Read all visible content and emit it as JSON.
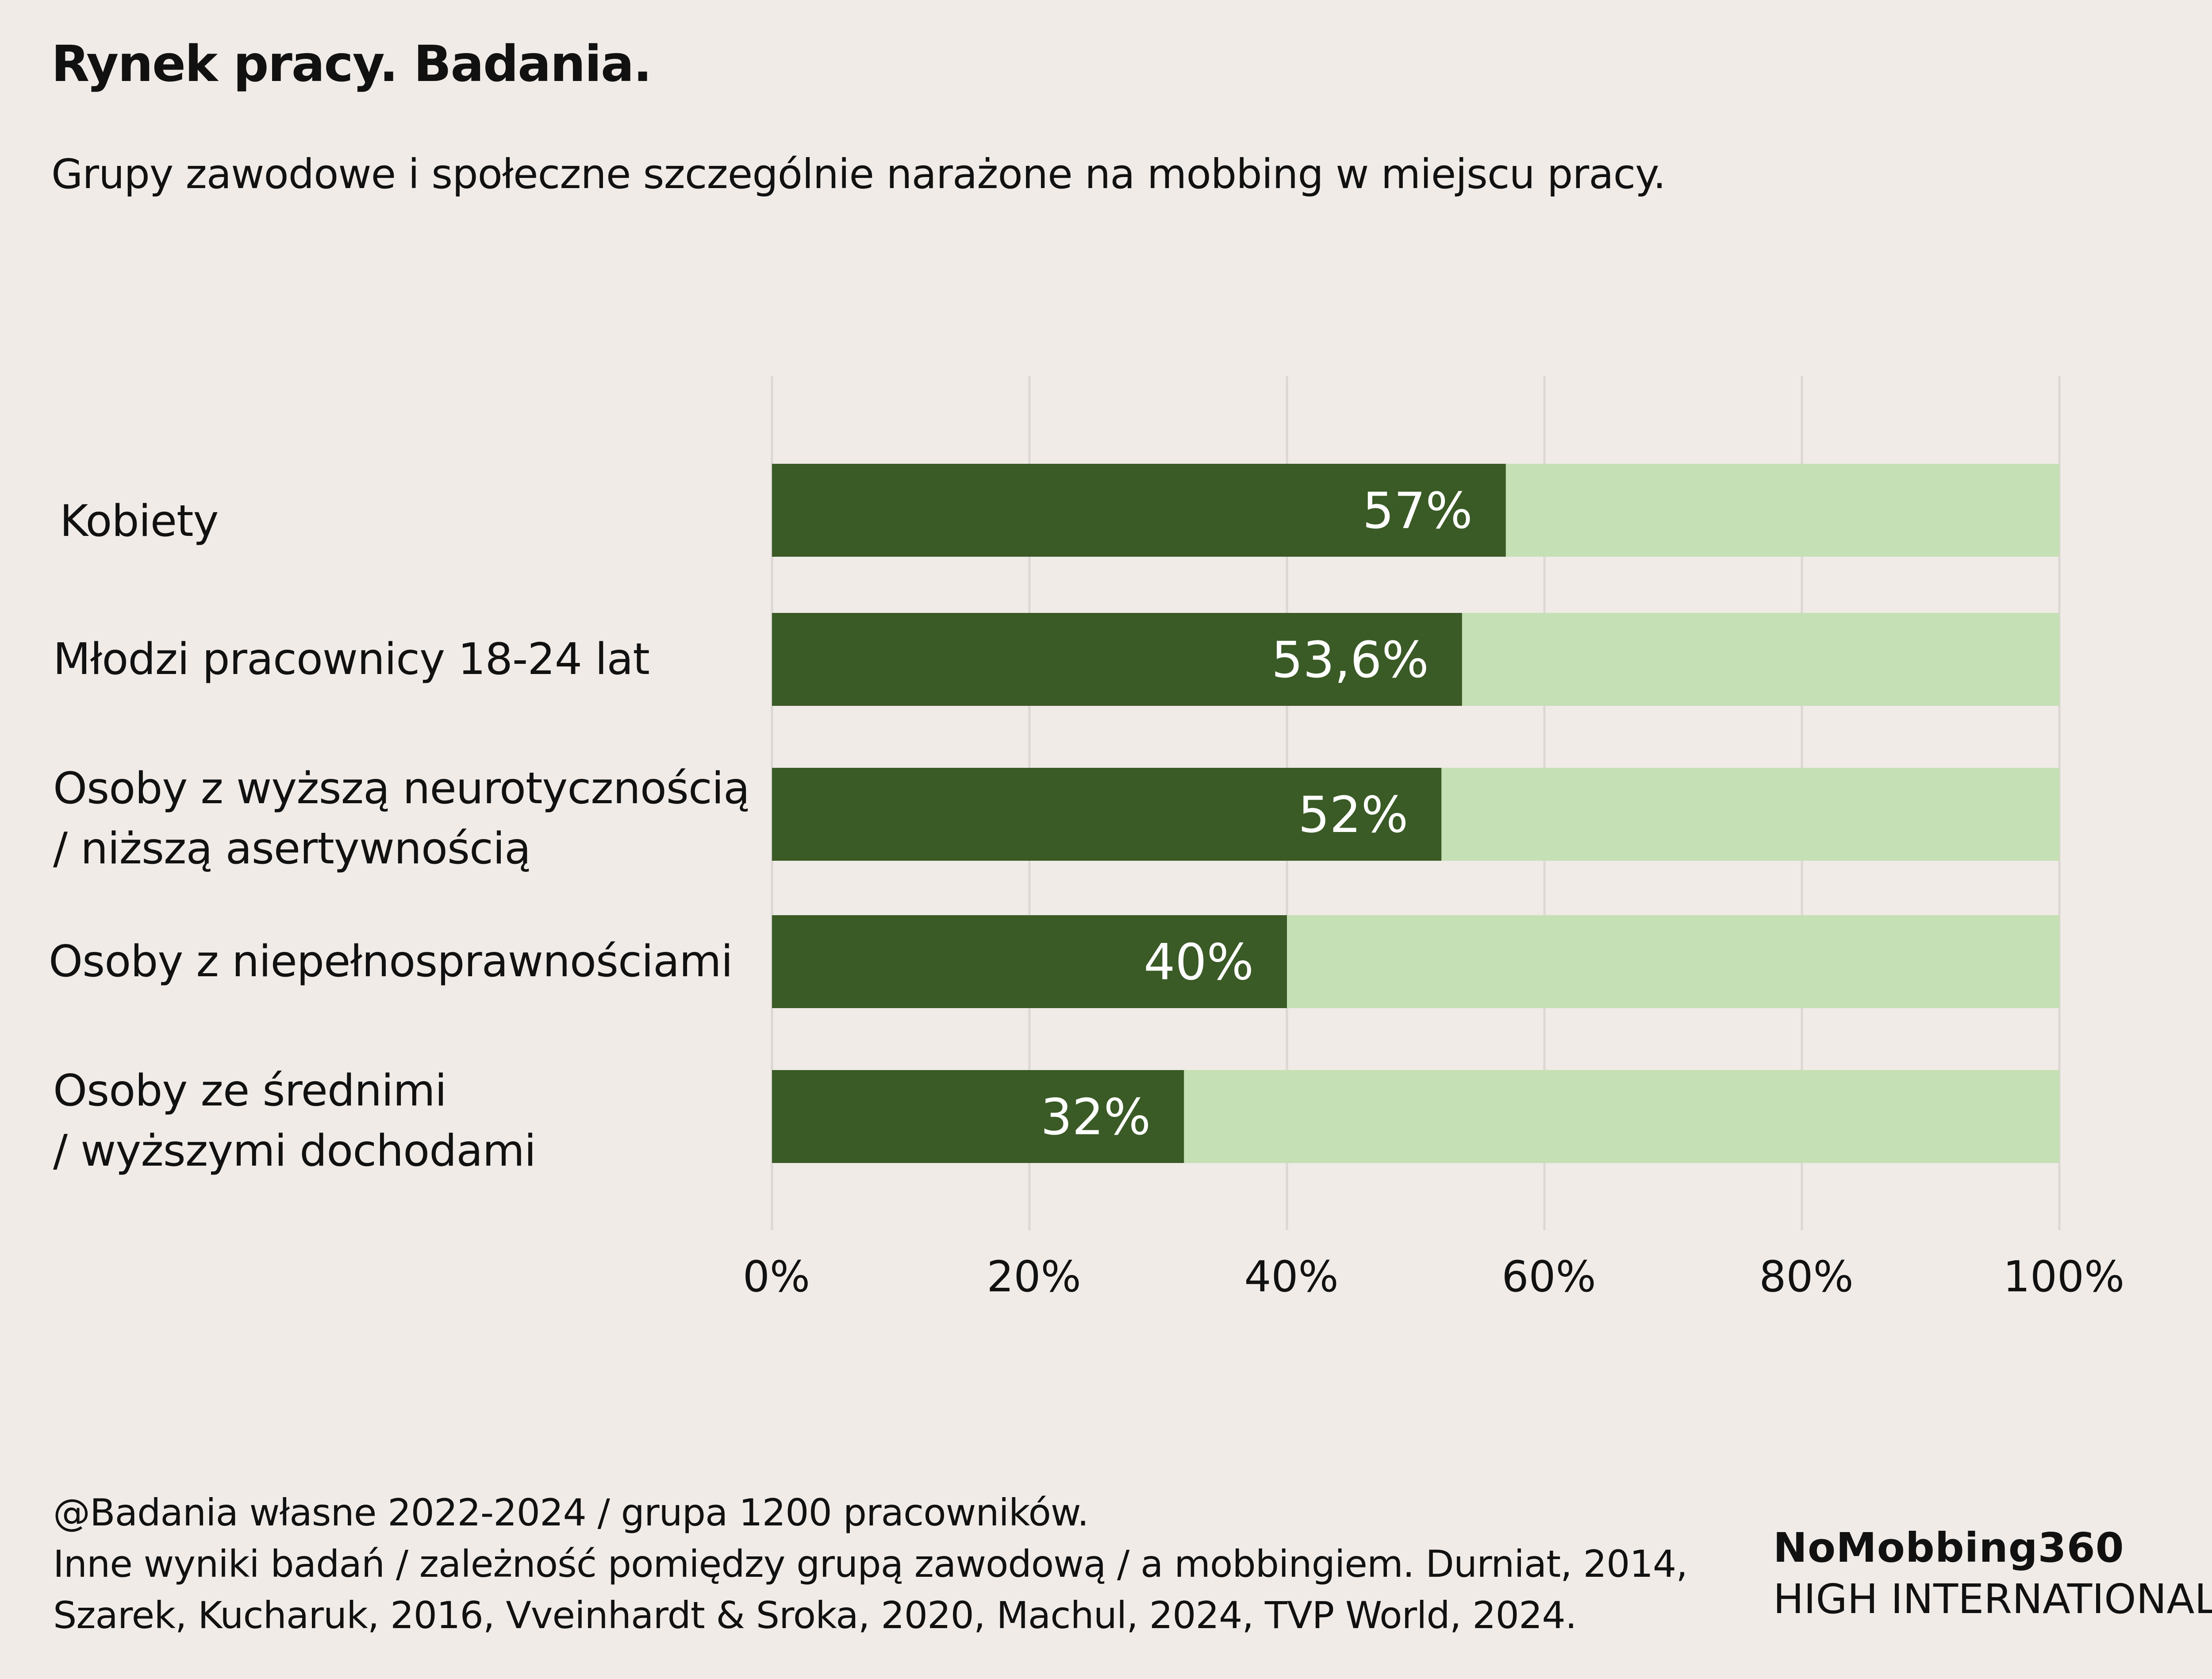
{
  "header": {
    "title": "Rynek pracy. Badania.",
    "subtitle": "Grupy zawodowe i społeczne szczególnie narażone na mobbing w miejscu pracy."
  },
  "chart_data": {
    "type": "bar",
    "orientation": "horizontal",
    "stacked_to_100": true,
    "categories": [
      "Kobiety",
      "Młodzi pracownicy 18-24 lat",
      "Osoby z wyższą neurotycznością\n/ niższą asertywnością",
      "Osoby z niepełnosprawnościami",
      "Osoby ze średnimi\n/ wyższymi dochodami"
    ],
    "values": [
      57,
      53.6,
      52,
      40,
      32
    ],
    "data_labels": [
      "57%",
      "53,6%",
      "52%",
      "40%",
      "32%"
    ],
    "xlim": [
      0,
      100
    ],
    "x_ticks": [
      0,
      20,
      40,
      60,
      80,
      100
    ],
    "x_tick_labels": [
      "0%",
      "20%",
      "40%",
      "60%",
      "80%",
      "100%"
    ],
    "grid": "vertical",
    "colors": {
      "value": "#3a5a26",
      "remainder": "#c5e0b4",
      "grid": "#dcd7d3",
      "label": "#ffffff"
    }
  },
  "footer": {
    "lines": [
      "@Badania własne 2022-2024 / grupa 1200 pracowników.",
      "Inne wyniki badań / zależność pomiędzy grupą zawodową / a mobbingiem. Durniat, 2014,",
      "Szarek, Kucharuk, 2016, Vveinhardt & Sroka, 2020, Machul, 2024, TVP World, 2024."
    ]
  },
  "brand": {
    "name": "NoMobbing360",
    "tagline": "HIGH INTERNATIONAL"
  }
}
